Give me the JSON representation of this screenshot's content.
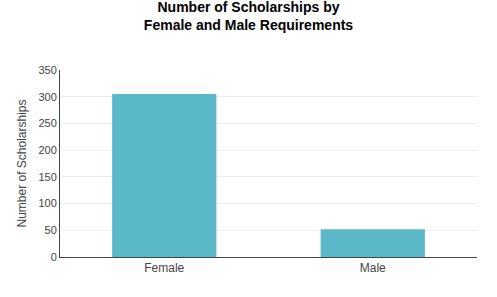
{
  "chart_data": {
    "type": "bar",
    "title": "Number of Scholarships by\nFemale and Male Requirements",
    "categories": [
      "Female",
      "Male"
    ],
    "values": [
      305,
      52
    ],
    "color": "#5BB8C8",
    "ylabel": "Number of Scholarships",
    "ylim": [
      0,
      350
    ],
    "yticks": [
      0,
      50,
      100,
      150,
      200,
      250,
      300,
      350
    ],
    "grid": true
  }
}
